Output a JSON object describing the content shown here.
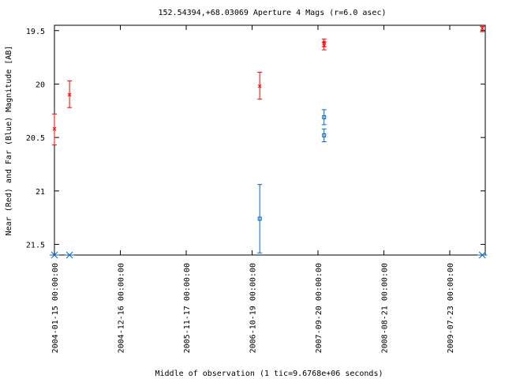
{
  "chart_data": {
    "type": "scatter",
    "title": "152.54394,+68.03069   Aperture 4 Mags (r=6.0 asec)",
    "xlabel": "Middle of observation (1 tic=9.6768e+06 seconds)",
    "ylabel": "Near (Red) and Far (Blue) Magnitude [AB]",
    "y_reversed": true,
    "ylim": [
      21.6,
      19.45
    ],
    "y_ticks": [
      "19.5",
      "20",
      "20.5",
      "21",
      "21.5"
    ],
    "x_ticks": [
      "2004-01-15 00:00:00",
      "2004-12-16 00:00:00",
      "2005-11-17 00:00:00",
      "2006-10-19 00:00:00",
      "2007-09-20 00:00:00",
      "2008-08-21 00:00:00",
      "2009-07-23 00:00:00"
    ],
    "grid": false,
    "legend": "none",
    "series": [
      {
        "color": "#ff0000",
        "marker": "x",
        "points": [
          {
            "x": "2004-01-15",
            "y": 20.42,
            "err": [
              20.28,
              20.57
            ]
          },
          {
            "x": "2004-04-01",
            "y": 20.1,
            "err": [
              19.97,
              20.22
            ]
          },
          {
            "x": "2006-11-27",
            "y": 20.02,
            "err": [
              19.89,
              20.14
            ]
          },
          {
            "x": "2007-10-21",
            "y": 19.61,
            "err": [
              19.58,
              19.65
            ]
          },
          {
            "x": "2007-10-21",
            "y": 19.64,
            "err": [
              19.61,
              19.68
            ]
          },
          {
            "x": "2010-01-05",
            "y": 19.48,
            "err": [
              19.46,
              19.51
            ]
          }
        ]
      },
      {
        "color": "#0066cc",
        "marker": "square",
        "points": [
          {
            "x": "2006-11-27",
            "y": 21.26,
            "err": [
              20.94,
              21.58
            ]
          },
          {
            "x": "2007-10-21",
            "y": 20.31,
            "err": [
              20.24,
              20.38
            ]
          },
          {
            "x": "2007-10-21",
            "y": 20.48,
            "err": [
              20.42,
              20.54
            ]
          }
        ]
      }
    ],
    "baseline_markers": {
      "color": "#0066cc",
      "x": [
        "2004-01-15",
        "2004-04-01",
        "2010-01-05"
      ]
    }
  }
}
